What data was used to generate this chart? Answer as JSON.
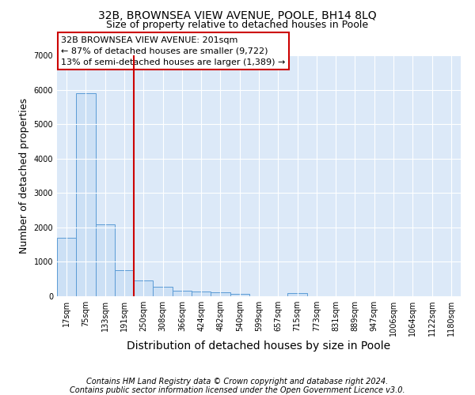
{
  "title": "32B, BROWNSEA VIEW AVENUE, POOLE, BH14 8LQ",
  "subtitle": "Size of property relative to detached houses in Poole",
  "xlabel": "Distribution of detached houses by size in Poole",
  "ylabel": "Number of detached properties",
  "footer_line1": "Contains HM Land Registry data © Crown copyright and database right 2024.",
  "footer_line2": "Contains public sector information licensed under the Open Government Licence v3.0.",
  "bin_labels": [
    "17sqm",
    "75sqm",
    "133sqm",
    "191sqm",
    "250sqm",
    "308sqm",
    "366sqm",
    "424sqm",
    "482sqm",
    "540sqm",
    "599sqm",
    "657sqm",
    "715sqm",
    "773sqm",
    "831sqm",
    "889sqm",
    "947sqm",
    "1006sqm",
    "1064sqm",
    "1122sqm",
    "1180sqm"
  ],
  "bar_values": [
    1700,
    5900,
    2100,
    750,
    450,
    270,
    160,
    130,
    110,
    65,
    0,
    0,
    85,
    0,
    0,
    0,
    0,
    0,
    0,
    0,
    0
  ],
  "bar_color": "#cce0f5",
  "bar_edge_color": "#5b9bd5",
  "red_line_color": "#cc0000",
  "red_line_x": 3.5,
  "annotation_text_line1": "32B BROWNSEA VIEW AVENUE: 201sqm",
  "annotation_text_line2": "← 87% of detached houses are smaller (9,722)",
  "annotation_text_line3": "13% of semi-detached houses are larger (1,389) →",
  "ylim": [
    0,
    7000
  ],
  "yticks": [
    0,
    1000,
    2000,
    3000,
    4000,
    5000,
    6000,
    7000
  ],
  "bg_color": "#dce9f8",
  "grid_color": "#ffffff",
  "title_fontsize": 10,
  "subtitle_fontsize": 9,
  "axis_label_fontsize": 9,
  "tick_fontsize": 7,
  "annotation_fontsize": 8,
  "footer_fontsize": 7
}
